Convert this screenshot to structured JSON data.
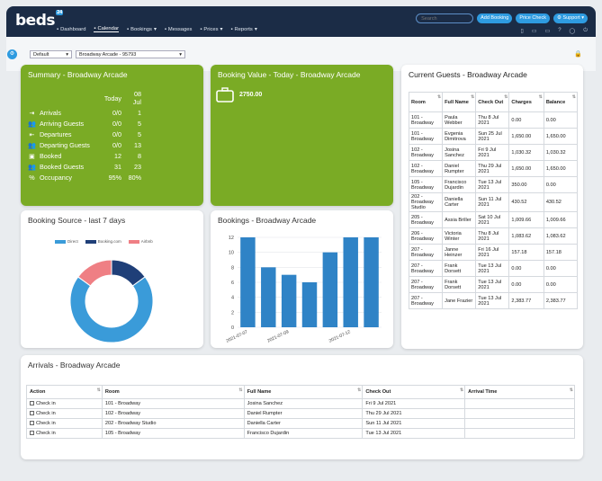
{
  "app": {
    "logo": "beds",
    "logo_badge": "24"
  },
  "nav": [
    {
      "label": "Dashboard",
      "icon": "home-icon"
    },
    {
      "label": "Calendar",
      "icon": "calendar-icon",
      "active": true
    },
    {
      "label": "Bookings",
      "icon": "book-icon",
      "dropdown": true
    },
    {
      "label": "Messages",
      "icon": "message-icon"
    },
    {
      "label": "Prices",
      "icon": "price-icon",
      "dropdown": true
    },
    {
      "label": "Reports",
      "icon": "chart-icon",
      "dropdown": true
    }
  ],
  "topbar": {
    "search_placeholder": "Search",
    "add_booking": "Add Booking",
    "price_check": "Price Check",
    "support": "Support"
  },
  "toolbar": {
    "view_select": "Default",
    "property_select": "Broadway Arcade - 95793"
  },
  "summary": {
    "title": "Summary - Broadway Arcade",
    "col1": "Today",
    "col2": "08 Jul",
    "rows": [
      {
        "label": "Arrivals",
        "today": "0/0",
        "date": "1",
        "icon": "arrow-in-icon"
      },
      {
        "label": "Arriving Guests",
        "today": "0/0",
        "date": "5",
        "icon": "guests-icon"
      },
      {
        "label": "Departures",
        "today": "0/0",
        "date": "5",
        "icon": "arrow-out-icon"
      },
      {
        "label": "Departing Guests",
        "today": "0/0",
        "date": "13",
        "icon": "guests-icon"
      },
      {
        "label": "Booked",
        "today": "12",
        "date": "8",
        "icon": "bed-icon"
      },
      {
        "label": "Booked Guests",
        "today": "31",
        "date": "23",
        "icon": "guests-icon"
      },
      {
        "label": "Occupancy",
        "today": "95%",
        "date": "80%",
        "icon": "percent-icon"
      }
    ]
  },
  "booking_value": {
    "title": "Booking Value - Today - Broadway Arcade",
    "value": "2750.00"
  },
  "guests": {
    "title": "Current Guests - Broadway Arcade",
    "headers": [
      "Room",
      "Full Name",
      "Check Out",
      "Charges",
      "Balance"
    ],
    "rows": [
      [
        "101 - Broadway",
        "Paula Webber",
        "Thu 8 Jul 2021",
        "0.00",
        "0.00"
      ],
      [
        "101 - Broadway",
        "Evgenia Dimitrova",
        "Sun 25 Jul 2021",
        "1,650.00",
        "1,650.00"
      ],
      [
        "102 - Broadway",
        "Josina Sanchez",
        "Fri 9 Jul 2021",
        "1,030.32",
        "1,030.32"
      ],
      [
        "102 - Broadway",
        "Daniel Rumpter",
        "Thu 29 Jul 2021",
        "1,650.00",
        "1,650.00"
      ],
      [
        "105 - Broadway",
        "Francisco Dujardin",
        "Tue 13 Jul 2021",
        "350.00",
        "0.00"
      ],
      [
        "202 - Broadway Studio",
        "Daniella Carter",
        "Sun 11 Jul 2021",
        "430.52",
        "430.52"
      ],
      [
        "205 - Broadway",
        "Assia Briller",
        "Sat 10 Jul 2021",
        "1,009.66",
        "1,009.66"
      ],
      [
        "206 - Broadway",
        "Victoria Winter",
        "Thu 8 Jul 2021",
        "1,083.62",
        "1,083.62"
      ],
      [
        "207 - Broadway",
        "Janne Heinzer",
        "Fri 16 Jul 2021",
        "157.18",
        "157.18"
      ],
      [
        "207 - Broadway",
        "Frank Dorsett",
        "Tue 13 Jul 2021",
        "0.00",
        "0.00"
      ],
      [
        "207 - Broadway",
        "Frank Dorsett",
        "Tue 13 Jul 2021",
        "0.00",
        "0.00"
      ],
      [
        "207 - Broadway",
        "Jane Frazier",
        "Tue 13 Jul 2021",
        "2,383.77",
        "2,383.77"
      ]
    ]
  },
  "source": {
    "title": "Booking Source - last 7 days",
    "legend": [
      "Direct",
      "Booking.com",
      "Airbnb"
    ]
  },
  "bookings": {
    "title": "Bookings - Broadway Arcade"
  },
  "arrivals": {
    "title": "Arrivals - Broadway Arcade",
    "headers": [
      "Action",
      "Room",
      "Full Name",
      "Check Out",
      "Arrival Time"
    ],
    "rows": [
      [
        "Check in",
        "101 - Broadway",
        "Josina Sanchez",
        "Fri 9 Jul 2021",
        ""
      ],
      [
        "Check in",
        "102 - Broadway",
        "Daniel Rumpter",
        "Thu 29 Jul 2021",
        ""
      ],
      [
        "Check in",
        "202 - Broadway Studio",
        "Daniella Carter",
        "Sun 11 Jul 2021",
        ""
      ],
      [
        "Check in",
        "105 - Broadway",
        "Francisco Dujardin",
        "Tue 13 Jul 2021",
        ""
      ]
    ]
  },
  "chart_data": [
    {
      "type": "pie",
      "title": "Booking Source - last 7 days",
      "categories": [
        "Direct",
        "Booking.com",
        "Airbnb"
      ],
      "values": [
        70,
        15,
        15
      ],
      "colors": [
        "#3a9bd9",
        "#1f3f78",
        "#ef7f84"
      ]
    },
    {
      "type": "bar",
      "title": "Bookings - Broadway Arcade",
      "categories": [
        "2021-07-07",
        "2021-07-08",
        "2021-07-09",
        "2021-07-10",
        "2021-07-11",
        "2021-07-12",
        "2021-07-13"
      ],
      "x_tick_labels": [
        "2021-07-07",
        "2021-07-09",
        "2021-07-12"
      ],
      "values": [
        12,
        8,
        7,
        6,
        10,
        12,
        12
      ],
      "ylim": [
        0,
        12
      ],
      "yticks": [
        0,
        2,
        4,
        6,
        8,
        10,
        12
      ],
      "color": "#2f83c6"
    }
  ]
}
